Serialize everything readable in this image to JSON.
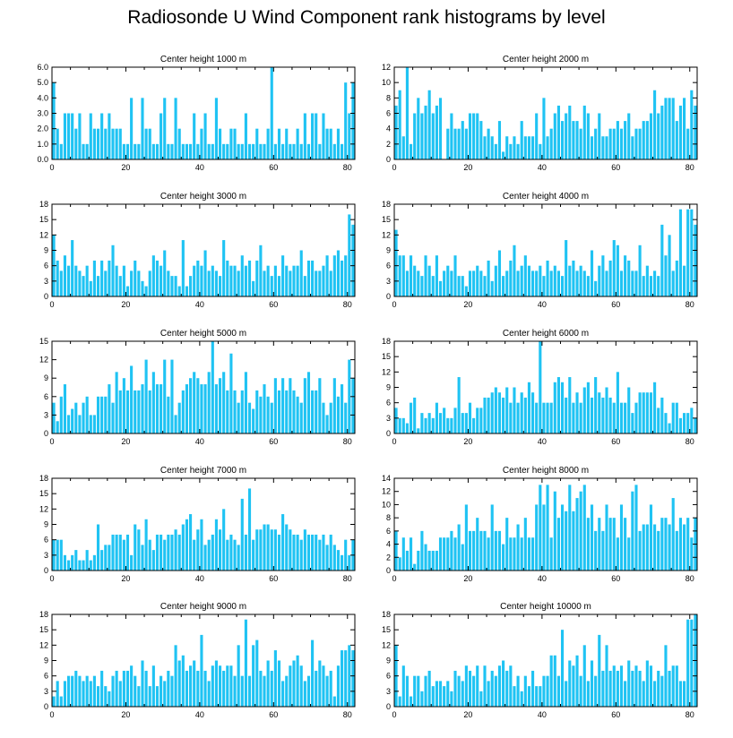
{
  "title": "Radiosonde U Wind Component rank histograms by level",
  "colors": {
    "bar": "#1fc3f3",
    "axis": "#000000"
  },
  "chart_data": [
    {
      "type": "bar",
      "title": "Center height 1000 m",
      "xlim": [
        0,
        82
      ],
      "ylim": [
        0,
        6.0
      ],
      "xticks": [
        0,
        20,
        40,
        60,
        80
      ],
      "yticks": [
        "0.0",
        "1.0",
        "2.0",
        "3.0",
        "4.0",
        "5.0",
        "6.0"
      ],
      "values": [
        5,
        2,
        1,
        3,
        3,
        3,
        2,
        3,
        1,
        1,
        3,
        2,
        2,
        3,
        2,
        3,
        2,
        2,
        2,
        1,
        1,
        4,
        1,
        1,
        4,
        2,
        2,
        1,
        1,
        3,
        4,
        1,
        1,
        4,
        2,
        1,
        1,
        1,
        3,
        1,
        2,
        3,
        1,
        1,
        4,
        2,
        1,
        1,
        2,
        2,
        1,
        1,
        3,
        1,
        1,
        2,
        1,
        1,
        2,
        6,
        1,
        2,
        1,
        2,
        1,
        1,
        2,
        1,
        3,
        1,
        3,
        3,
        1,
        3,
        2,
        2,
        1,
        2,
        1,
        5,
        3,
        5
      ]
    },
    {
      "type": "bar",
      "title": "Center height 2000 m",
      "xlim": [
        0,
        82
      ],
      "ylim": [
        0,
        12
      ],
      "xticks": [
        0,
        20,
        40,
        60,
        80
      ],
      "yticks": [
        "0",
        "2",
        "4",
        "6",
        "8",
        "10",
        "12"
      ],
      "values": [
        7,
        9,
        3,
        12,
        2,
        6,
        8,
        6,
        7,
        9,
        6,
        7,
        8,
        0,
        4,
        6,
        4,
        4,
        5,
        4,
        6,
        6,
        6,
        5,
        3,
        4,
        3,
        2,
        5,
        1,
        3,
        2,
        3,
        2,
        5,
        3,
        3,
        3,
        6,
        2,
        8,
        3,
        4,
        6,
        7,
        5,
        6,
        7,
        5,
        5,
        4,
        7,
        6,
        3,
        4,
        6,
        3,
        3,
        4,
        4,
        5,
        4,
        5,
        6,
        3,
        4,
        4,
        5,
        5,
        6,
        9,
        6,
        7,
        8,
        8,
        8,
        5,
        7,
        8,
        4,
        9,
        7
      ]
    },
    {
      "type": "bar",
      "title": "Center height 3000 m",
      "xlim": [
        0,
        82
      ],
      "ylim": [
        0,
        18
      ],
      "xticks": [
        0,
        20,
        40,
        60,
        80
      ],
      "yticks": [
        "0",
        "3",
        "6",
        "9",
        "12",
        "15",
        "18"
      ],
      "values": [
        12,
        7,
        5,
        8,
        6,
        11,
        6,
        5,
        4,
        6,
        3,
        7,
        4,
        7,
        5,
        7,
        10,
        6,
        4,
        6,
        2,
        5,
        7,
        5,
        3,
        2,
        5,
        8,
        7,
        6,
        9,
        5,
        4,
        4,
        2,
        11,
        2,
        4,
        6,
        7,
        6,
        9,
        5,
        6,
        5,
        4,
        11,
        7,
        6,
        6,
        5,
        8,
        6,
        7,
        3,
        7,
        10,
        5,
        6,
        4,
        6,
        4,
        8,
        6,
        5,
        6,
        6,
        9,
        4,
        7,
        7,
        5,
        5,
        6,
        8,
        5,
        8,
        9,
        7,
        8,
        16,
        14
      ]
    },
    {
      "type": "bar",
      "title": "Center height 4000 m",
      "xlim": [
        0,
        82
      ],
      "ylim": [
        0,
        18
      ],
      "xticks": [
        0,
        20,
        40,
        60,
        80
      ],
      "yticks": [
        "0",
        "3",
        "6",
        "9",
        "12",
        "15",
        "18"
      ],
      "values": [
        13,
        8,
        8,
        5,
        8,
        6,
        5,
        4,
        8,
        6,
        4,
        8,
        3,
        5,
        6,
        5,
        8,
        4,
        4,
        2,
        5,
        5,
        6,
        5,
        4,
        7,
        3,
        6,
        9,
        4,
        5,
        7,
        10,
        5,
        6,
        8,
        6,
        5,
        5,
        6,
        4,
        7,
        5,
        6,
        5,
        4,
        11,
        6,
        7,
        5,
        6,
        5,
        4,
        9,
        3,
        6,
        8,
        5,
        7,
        11,
        10,
        5,
        8,
        7,
        5,
        5,
        10,
        4,
        6,
        4,
        5,
        4,
        14,
        8,
        12,
        5,
        7,
        17,
        6,
        17,
        17,
        14
      ]
    },
    {
      "type": "bar",
      "title": "Center height 5000 m",
      "xlim": [
        0,
        82
      ],
      "ylim": [
        0,
        15
      ],
      "xticks": [
        0,
        20,
        40,
        60,
        80
      ],
      "yticks": [
        "0",
        "3",
        "6",
        "9",
        "12",
        "15"
      ],
      "values": [
        5,
        2,
        6,
        8,
        3,
        4,
        5,
        3,
        5,
        6,
        3,
        3,
        6,
        6,
        6,
        8,
        5,
        10,
        7,
        9,
        7,
        11,
        7,
        7,
        8,
        12,
        7,
        10,
        8,
        8,
        12,
        6,
        12,
        3,
        5,
        7,
        8,
        9,
        10,
        9,
        8,
        8,
        10,
        15,
        8,
        9,
        10,
        7,
        13,
        7,
        5,
        7,
        10,
        5,
        4,
        7,
        6,
        8,
        6,
        5,
        9,
        7,
        9,
        7,
        9,
        7,
        6,
        5,
        9,
        10,
        7,
        7,
        9,
        5,
        3,
        5,
        9,
        6,
        8,
        5,
        12,
        9
      ]
    },
    {
      "type": "bar",
      "title": "Center height 6000 m",
      "xlim": [
        0,
        82
      ],
      "ylim": [
        0,
        18
      ],
      "xticks": [
        0,
        20,
        40,
        60,
        80
      ],
      "yticks": [
        "0",
        "3",
        "6",
        "9",
        "12",
        "15",
        "18"
      ],
      "values": [
        5,
        3,
        3,
        2,
        6,
        7,
        1,
        4,
        3,
        4,
        3,
        6,
        4,
        5,
        3,
        3,
        5,
        11,
        4,
        4,
        6,
        3,
        5,
        5,
        7,
        7,
        8,
        9,
        8,
        7,
        9,
        6,
        9,
        6,
        8,
        7,
        10,
        8,
        6,
        18,
        6,
        6,
        6,
        10,
        11,
        10,
        7,
        11,
        6,
        8,
        6,
        9,
        10,
        7,
        11,
        8,
        7,
        9,
        7,
        6,
        12,
        6,
        6,
        9,
        4,
        6,
        8,
        8,
        8,
        8,
        10,
        5,
        7,
        4,
        2,
        6,
        6,
        3,
        4,
        4,
        5,
        3
      ]
    },
    {
      "type": "bar",
      "title": "Center height 7000 m",
      "xlim": [
        0,
        82
      ],
      "ylim": [
        0,
        18
      ],
      "xticks": [
        0,
        20,
        40,
        60,
        80
      ],
      "yticks": [
        "0",
        "3",
        "6",
        "9",
        "12",
        "15",
        "18"
      ],
      "values": [
        6,
        6,
        6,
        3,
        2,
        3,
        4,
        2,
        2,
        4,
        2,
        3,
        9,
        4,
        5,
        5,
        7,
        7,
        7,
        6,
        7,
        3,
        9,
        8,
        5,
        10,
        6,
        4,
        7,
        7,
        6,
        7,
        7,
        8,
        7,
        9,
        10,
        11,
        6,
        8,
        10,
        5,
        6,
        7,
        10,
        8,
        12,
        6,
        7,
        6,
        5,
        14,
        7,
        16,
        6,
        8,
        8,
        9,
        9,
        8,
        8,
        7,
        11,
        9,
        8,
        7,
        7,
        6,
        8,
        7,
        7,
        7,
        6,
        7,
        5,
        7,
        5,
        4,
        3,
        6,
        3,
        6
      ]
    },
    {
      "type": "bar",
      "title": "Center height 8000 m",
      "xlim": [
        0,
        82
      ],
      "ylim": [
        0,
        14
      ],
      "xticks": [
        0,
        20,
        40,
        60,
        80
      ],
      "yticks": [
        "0",
        "2",
        "4",
        "6",
        "8",
        "10",
        "12",
        "14"
      ],
      "values": [
        6,
        2,
        5,
        3,
        5,
        1,
        3,
        6,
        4,
        3,
        3,
        3,
        5,
        5,
        5,
        6,
        5,
        7,
        4,
        10,
        6,
        6,
        8,
        6,
        6,
        5,
        10,
        6,
        6,
        4,
        8,
        5,
        5,
        7,
        5,
        8,
        5,
        5,
        10,
        13,
        10,
        13,
        5,
        12,
        8,
        10,
        9,
        13,
        9,
        11,
        12,
        13,
        8,
        10,
        6,
        8,
        6,
        10,
        8,
        8,
        5,
        10,
        8,
        5,
        12,
        13,
        6,
        7,
        7,
        10,
        7,
        6,
        8,
        8,
        7,
        11,
        6,
        8,
        7,
        8,
        5,
        8
      ]
    },
    {
      "type": "bar",
      "title": "Center height 9000 m",
      "xlim": [
        0,
        82
      ],
      "ylim": [
        0,
        18
      ],
      "xticks": [
        0,
        20,
        40,
        60,
        80
      ],
      "yticks": [
        "0",
        "3",
        "6",
        "9",
        "12",
        "15",
        "18"
      ],
      "values": [
        2,
        5,
        2,
        5,
        6,
        6,
        7,
        6,
        5,
        6,
        5,
        6,
        4,
        7,
        4,
        3,
        6,
        7,
        5,
        7,
        7,
        8,
        6,
        4,
        9,
        7,
        4,
        8,
        4,
        6,
        5,
        7,
        6,
        12,
        9,
        10,
        7,
        8,
        9,
        7,
        14,
        7,
        5,
        8,
        9,
        8,
        7,
        8,
        8,
        6,
        12,
        6,
        17,
        6,
        12,
        13,
        7,
        6,
        9,
        7,
        11,
        9,
        5,
        6,
        8,
        9,
        10,
        8,
        5,
        6,
        13,
        7,
        9,
        8,
        6,
        7,
        2,
        8,
        11,
        11,
        12,
        11
      ]
    },
    {
      "type": "bar",
      "title": "Center height 10000 m",
      "xlim": [
        0,
        82
      ],
      "ylim": [
        0,
        18
      ],
      "xticks": [
        0,
        20,
        40,
        60,
        80
      ],
      "yticks": [
        "0",
        "3",
        "6",
        "9",
        "12",
        "15",
        "18"
      ],
      "values": [
        12,
        2,
        8,
        6,
        2,
        6,
        6,
        3,
        6,
        7,
        4,
        5,
        5,
        4,
        5,
        3,
        7,
        6,
        5,
        8,
        7,
        6,
        8,
        3,
        8,
        5,
        7,
        6,
        8,
        9,
        7,
        8,
        4,
        6,
        3,
        6,
        4,
        7,
        4,
        4,
        6,
        6,
        10,
        10,
        6,
        15,
        5,
        9,
        8,
        10,
        6,
        12,
        5,
        9,
        6,
        14,
        7,
        12,
        7,
        8,
        7,
        8,
        5,
        9,
        7,
        8,
        7,
        5,
        9,
        8,
        5,
        7,
        6,
        12,
        7,
        8,
        8,
        5,
        5,
        17,
        17,
        18
      ]
    }
  ]
}
